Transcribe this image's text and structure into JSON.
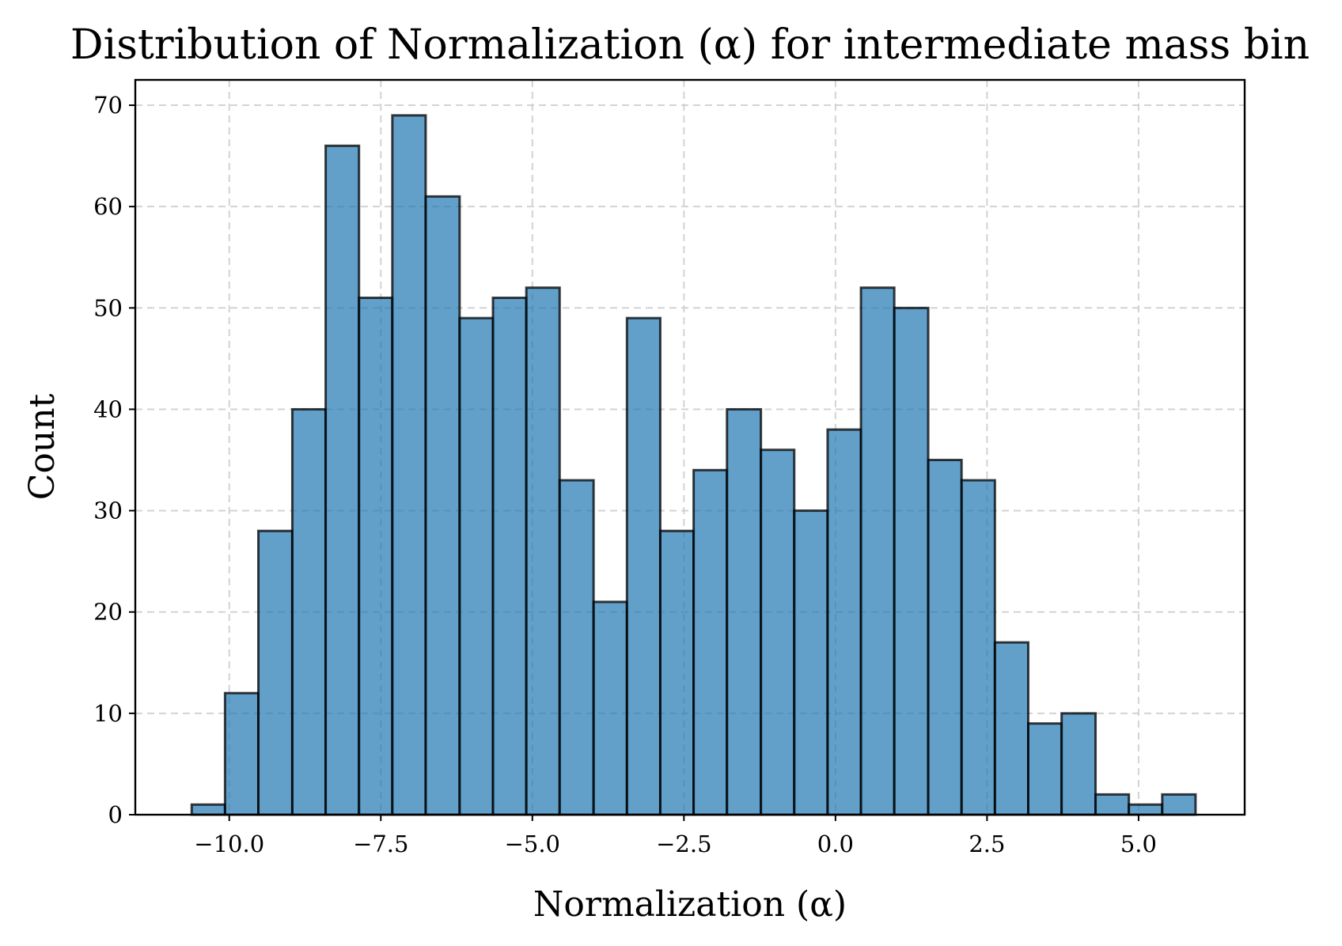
{
  "chart_data": {
    "type": "bar",
    "subtype": "histogram",
    "title": "Distribution of Normalization (α) for intermediate mass bin",
    "xlabel": "Normalization (α)",
    "ylabel": "Count",
    "xlim": [
      -11.55,
      6.75
    ],
    "ylim": [
      0,
      72.5
    ],
    "x_ticks": [
      -10.0,
      -7.5,
      -5.0,
      -2.5,
      0.0,
      2.5,
      5.0
    ],
    "x_tick_labels": [
      "−10.0",
      "−7.5",
      "−5.0",
      "−2.5",
      "0.0",
      "2.5",
      "5.0"
    ],
    "y_ticks": [
      0,
      10,
      20,
      30,
      40,
      50,
      60,
      70
    ],
    "y_tick_labels": [
      "0",
      "10",
      "20",
      "30",
      "40",
      "50",
      "60",
      "70"
    ],
    "grid": true,
    "legend": null,
    "bar_color": "#1f77b4",
    "bar_opacity": 0.7,
    "edge_color": "#000000",
    "bin_edges": [
      -10.62,
      -10.07,
      -9.52,
      -8.96,
      -8.41,
      -7.86,
      -7.31,
      -6.76,
      -6.2,
      -5.65,
      -5.1,
      -4.55,
      -3.99,
      -3.44,
      -2.89,
      -2.34,
      -1.79,
      -1.23,
      -0.68,
      -0.13,
      0.42,
      0.97,
      1.53,
      2.08,
      2.63,
      3.18,
      3.73,
      4.29,
      4.84,
      5.39,
      5.94
    ],
    "values": [
      1,
      12,
      28,
      40,
      66,
      51,
      69,
      61,
      49,
      51,
      52,
      33,
      21,
      49,
      28,
      34,
      40,
      36,
      30,
      38,
      52,
      50,
      35,
      33,
      17,
      9,
      10,
      2,
      1,
      2
    ]
  }
}
